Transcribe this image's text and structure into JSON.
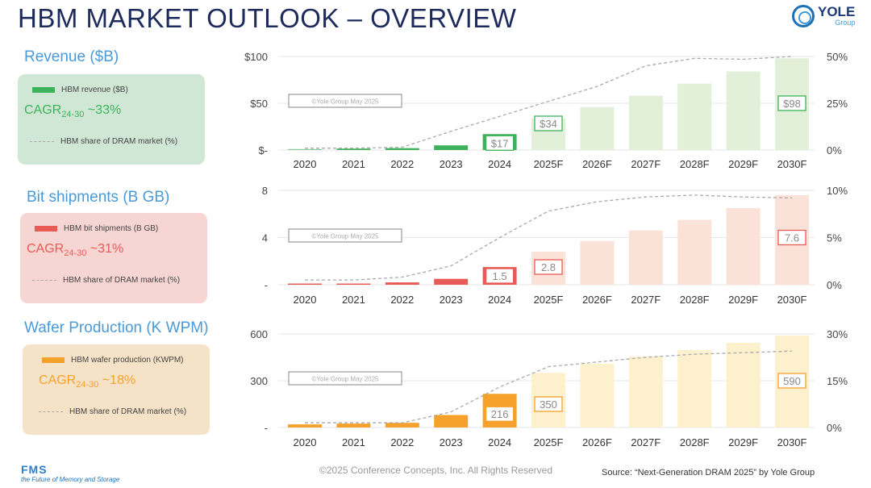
{
  "title": "HBM MARKET OUTLOOK – OVERVIEW",
  "logo": {
    "name": "YOLE",
    "sub": "Group"
  },
  "footer": {
    "copyright": "©2025 Conference Concepts, Inc. All Rights Reserved",
    "source": "Source: “Next-Generation DRAM 2025” by Yole Group",
    "fms_logo": "FMS",
    "fms_tagline": "the Future of Memory and Storage"
  },
  "panels": [
    {
      "heading": "Revenue ($B)",
      "bar_legend": "HBM revenue ($B)",
      "cagr_prefix": "CAGR",
      "cagr_sub": "24-30",
      "cagr_value": " ~33%",
      "line_legend": "HBM share of DRAM market (%)",
      "color": "#3cb35a",
      "light": "#e2efd9",
      "box_bg": "#d0e7d5",
      "cagr_color": "#3cb35a"
    },
    {
      "heading": "Bit shipments (B GB)",
      "bar_legend": "HBM bit shipments (B GB)",
      "cagr_prefix": "CAGR",
      "cagr_sub": "24-30",
      "cagr_value": " ~31%",
      "line_legend": "HBM share of DRAM market (%)",
      "color": "#e85a55",
      "light": "#fae2d9",
      "box_bg": "#f6d5d2",
      "cagr_color": "#e85a55"
    },
    {
      "heading": "Wafer Production (K WPM)",
      "bar_legend": "HBM wafer production (KWPM)",
      "cagr_prefix": "CAGR",
      "cagr_sub": "24-30",
      "cagr_value": " ~18%",
      "line_legend": "HBM share of DRAM market (%)",
      "color": "#f5a12b",
      "light": "#fdf0cc",
      "box_bg": "#f6e2c6",
      "cagr_color": "#f5a12b"
    }
  ],
  "chart_data": [
    {
      "type": "bar",
      "title": "Revenue ($B)",
      "watermark": "©Yole Group May 2025",
      "categories": [
        "2020",
        "2021",
        "2022",
        "2023",
        "2024",
        "2025F",
        "2026F",
        "2027F",
        "2028F",
        "2029F",
        "2030F"
      ],
      "forecast_from": "2025F",
      "series": [
        {
          "name": "HBM revenue ($B)",
          "values": [
            1,
            1.5,
            2,
            5,
            17,
            34,
            46,
            58,
            71,
            84,
            98
          ]
        },
        {
          "name": "HBM share of DRAM market (%)",
          "type": "line",
          "values": [
            1,
            1,
            1.5,
            10,
            18,
            26,
            34,
            45,
            49,
            48.5,
            50
          ]
        }
      ],
      "ylim": [
        0,
        100
      ],
      "yticks": [
        "$-",
        "$50",
        "$100"
      ],
      "y2lim": [
        0,
        50
      ],
      "y2ticks": [
        "0%",
        "25%",
        "50%"
      ],
      "data_labels": [
        {
          "index": 4,
          "text": "$17"
        },
        {
          "index": 5,
          "text": "$34"
        },
        {
          "index": 10,
          "text": "$98"
        }
      ]
    },
    {
      "type": "bar",
      "title": "Bit shipments (B GB)",
      "watermark": "©Yole Group May 2025",
      "categories": [
        "2020",
        "2021",
        "2022",
        "2023",
        "2024",
        "2025F",
        "2026F",
        "2027F",
        "2028F",
        "2029F",
        "2030F"
      ],
      "forecast_from": "2025F",
      "series": [
        {
          "name": "HBM bit shipments (B GB)",
          "values": [
            0.1,
            0.1,
            0.2,
            0.5,
            1.5,
            2.8,
            3.7,
            4.6,
            5.5,
            6.5,
            7.6
          ]
        },
        {
          "name": "HBM share of DRAM market (%)",
          "type": "line",
          "values": [
            0.5,
            0.5,
            0.8,
            2,
            5,
            7.8,
            8.8,
            9.3,
            9.5,
            9.3,
            9.2
          ]
        }
      ],
      "ylim": [
        0,
        8
      ],
      "yticks": [
        "-",
        "4",
        "8"
      ],
      "y2lim": [
        0,
        10
      ],
      "y2ticks": [
        "0%",
        "5%",
        "10%"
      ],
      "data_labels": [
        {
          "index": 4,
          "text": "1.5"
        },
        {
          "index": 5,
          "text": "2.8"
        },
        {
          "index": 10,
          "text": "7.6"
        }
      ]
    },
    {
      "type": "bar",
      "title": "Wafer Production (K WPM)",
      "watermark": "©Yole Group May 2025",
      "categories": [
        "2020",
        "2021",
        "2022",
        "2023",
        "2024",
        "2025F",
        "2026F",
        "2027F",
        "2028F",
        "2029F",
        "2030F"
      ],
      "forecast_from": "2025F",
      "series": [
        {
          "name": "HBM wafer production (KWPM)",
          "values": [
            20,
            25,
            30,
            80,
            216,
            350,
            409,
            455,
            497,
            543,
            590
          ]
        },
        {
          "name": "HBM share of DRAM market (%)",
          "type": "line",
          "values": [
            1.5,
            1.5,
            1.5,
            5,
            13,
            19.5,
            21,
            22.5,
            23.5,
            24,
            24.5
          ]
        }
      ],
      "ylim": [
        0,
        600
      ],
      "yticks": [
        "-",
        "300",
        "600"
      ],
      "y2lim": [
        0,
        30
      ],
      "y2ticks": [
        "0%",
        "15%",
        "30%"
      ],
      "data_labels": [
        {
          "index": 4,
          "text": "216"
        },
        {
          "index": 5,
          "text": "350"
        },
        {
          "index": 10,
          "text": "590"
        }
      ]
    }
  ]
}
